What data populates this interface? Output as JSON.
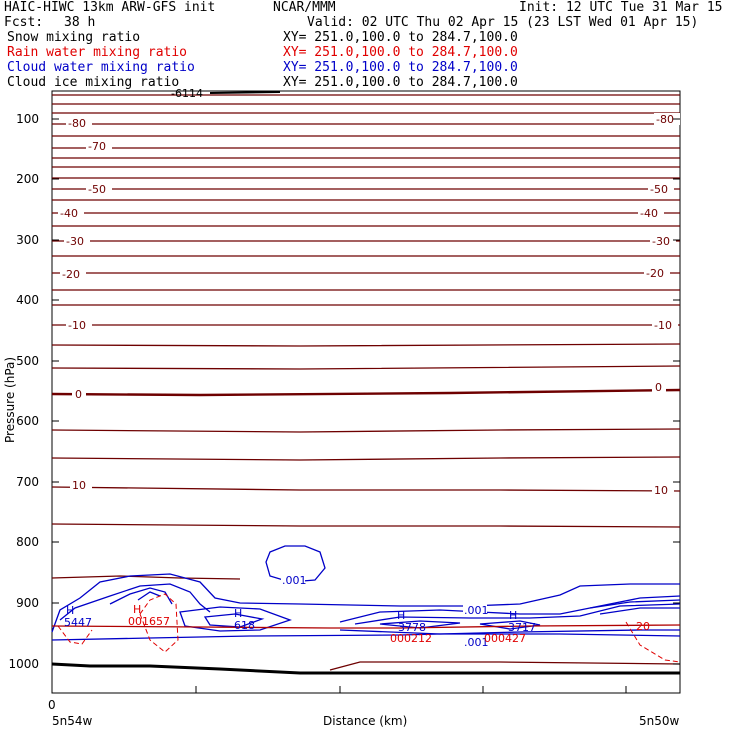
{
  "header": {
    "model": "HAIC-HIWC 13km ARW-GFS init",
    "org": "NCAR/MMM",
    "init": "Init: 12 UTC Tue 31 Mar 15",
    "fcst_label": "Fcst:",
    "fcst_value": "38 h",
    "valid": "Valid: 02 UTC Thu 02 Apr 15 (23 LST Wed 01 Apr 15)"
  },
  "fields": [
    {
      "name": "Snow mixing ratio",
      "xy": "XY= 251.0,100.0 to 284.7,100.0",
      "color": "#000000"
    },
    {
      "name": "Rain water mixing ratio",
      "xy": "XY= 251.0,100.0 to 284.7,100.0",
      "color": "#e00000"
    },
    {
      "name": "Cloud water mixing ratio",
      "xy": "XY= 251.0,100.0 to 284.7,100.0",
      "color": "#0000c8"
    },
    {
      "name": "Cloud ice mixing ratio",
      "xy": "XY= 251.0,100.0 to 284.7,100.0",
      "color": "#000000"
    }
  ],
  "chart_data": {
    "type": "line",
    "xlabel": "Distance (km)",
    "ylabel": "Pressure (hPa)",
    "x_ticks": [
      "0"
    ],
    "x_endpoints": [
      "5n54w",
      "5n50w"
    ],
    "y_ticks": [
      100,
      200,
      300,
      400,
      500,
      600,
      700,
      800,
      900,
      1000
    ],
    "ylim": [
      1050,
      50
    ],
    "y_scale": "log",
    "colors": {
      "temperature": "#6e0000",
      "cloud_water": "#0000c8",
      "rain_water": "#e00000",
      "ground": "#000000"
    },
    "temperature_isotherms": [
      {
        "label": "-80",
        "pressure": 110
      },
      {
        "label": "-70",
        "pressure": 135
      },
      {
        "label": "-50",
        "pressure": 215
      },
      {
        "label": "-40",
        "pressure": 250
      },
      {
        "label": "-30",
        "pressure": 300
      },
      {
        "label": "-20",
        "pressure": 355
      },
      {
        "label": "-10",
        "pressure": 440
      },
      {
        "label": "0",
        "pressure": 553
      },
      {
        "label": "10",
        "pressure": 712
      }
    ],
    "cloud_water_labels": [
      ".001",
      ".001",
      ".001"
    ],
    "max_markers": [
      {
        "symbol": "H",
        "value": "5447",
        "series": "cloud_water"
      },
      {
        "symbol": "H",
        "value": "001657",
        "series": "rain_water"
      },
      {
        "symbol": "H",
        "value": "618",
        "series": "cloud_water"
      },
      {
        "symbol": "H",
        "value": "3778",
        "series": "cloud_water"
      },
      {
        "symbol": "H",
        "value": "000212",
        "series": "rain_water"
      },
      {
        "symbol": "H",
        "value": "3717",
        "series": "cloud_water"
      },
      {
        "symbol": "H",
        "value": "000427",
        "series": "rain_water"
      }
    ],
    "rain_contour_labels": [
      "20"
    ],
    "top_label": "-6114"
  }
}
